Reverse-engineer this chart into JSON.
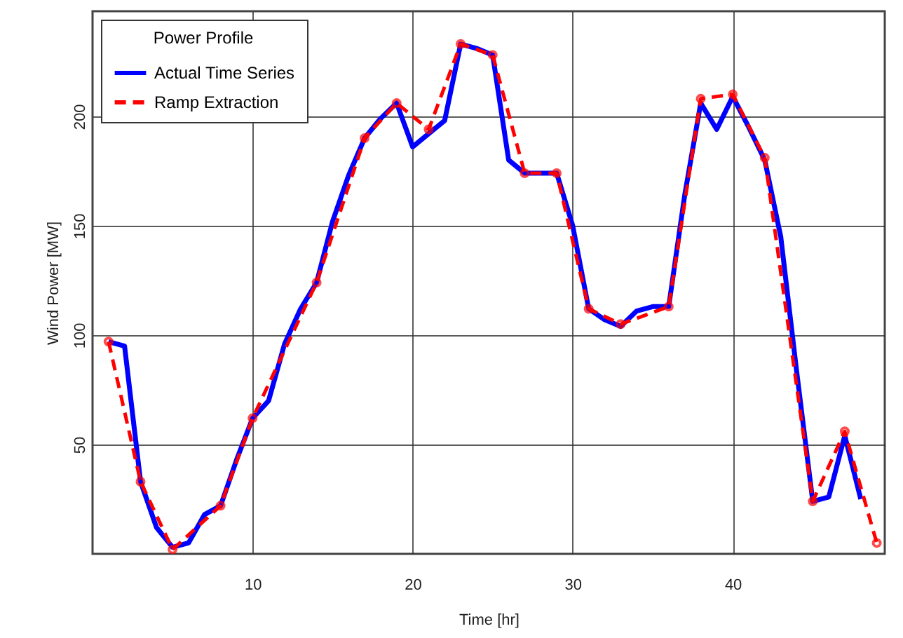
{
  "chart_data": {
    "type": "line",
    "xlabel": "Time [hr]",
    "ylabel": "Wind Power [MW]",
    "legend_title": "Power Profile",
    "legend": "top left",
    "grid": true,
    "xlim": [
      0,
      49.5
    ],
    "xticks": [
      10,
      20,
      30,
      40
    ],
    "ylim": [
      0,
      248
    ],
    "yticks": [
      50,
      100,
      150,
      200
    ],
    "series": [
      {
        "name": "Actual Time Series",
        "color": "#0000ff",
        "line_style": "solid",
        "marker": "none",
        "x": [
          1,
          2,
          3,
          4,
          5,
          6,
          7,
          8,
          9,
          10,
          11,
          12,
          13,
          14,
          15,
          16,
          17,
          18,
          19,
          20,
          21,
          22,
          23,
          24,
          25,
          26,
          27,
          28,
          29,
          30,
          31,
          32,
          33,
          34,
          35,
          36,
          37,
          38,
          39,
          40,
          41,
          42,
          43,
          44,
          45,
          46,
          47,
          48
        ],
        "values": [
          97,
          95,
          33,
          12,
          3,
          5,
          18,
          22,
          43,
          62,
          70,
          96,
          112,
          124,
          152,
          173,
          190,
          199,
          206,
          186,
          192,
          198,
          233,
          231,
          228,
          180,
          174,
          174,
          174,
          150,
          112,
          107,
          104,
          111,
          113,
          113,
          164,
          206,
          194,
          209,
          195,
          180,
          145,
          83,
          24,
          26,
          54,
          25
        ]
      },
      {
        "name": "Ramp Extraction",
        "color": "#ff0000",
        "line_style": "dashed",
        "marker": "circle",
        "x": [
          1,
          3,
          5,
          8,
          10,
          14,
          17,
          19,
          21,
          23,
          25,
          27,
          29,
          31,
          33,
          36,
          38,
          40,
          42,
          45,
          47,
          49
        ],
        "values": [
          97,
          33,
          2,
          22,
          62,
          124,
          190,
          206,
          194,
          233,
          228,
          174,
          174,
          112,
          105,
          113,
          208,
          210,
          181,
          24,
          56,
          5
        ]
      }
    ]
  }
}
